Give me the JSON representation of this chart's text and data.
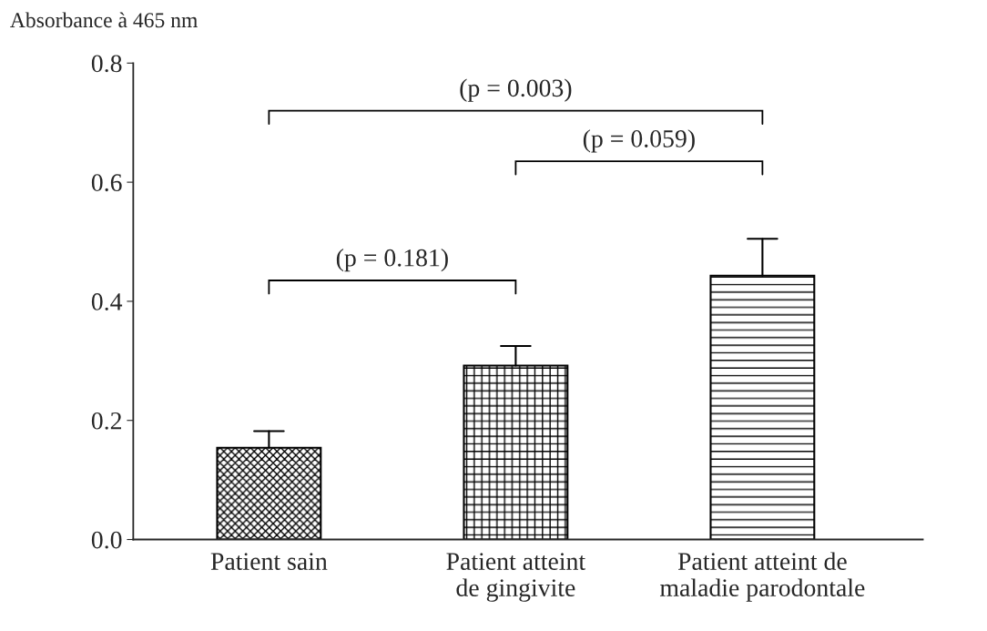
{
  "chart_data": {
    "type": "bar",
    "ylabel": "Absorbance à 465 nm",
    "categories": [
      "Patient sain",
      "Patient atteint\nde gingivite",
      "Patient atteint de\nmaladie parodontale"
    ],
    "values": [
      0.154,
      0.292,
      0.443
    ],
    "errors": [
      [
        0.154,
        0.182
      ],
      [
        0.292,
        0.325
      ],
      [
        0.443,
        0.505
      ]
    ],
    "ylim": [
      0,
      0.8
    ],
    "yticks": [
      {
        "value": 0,
        "label": "0.0"
      },
      {
        "value": 0.2,
        "label": "0.2"
      },
      {
        "value": 0.4,
        "label": "0.4"
      },
      {
        "value": 0.6,
        "label": "0.6"
      },
      {
        "value": 0.8,
        "label": "0.8"
      }
    ],
    "annotations": [
      "(p = 0.003)",
      "(p = 0.059)",
      "(p = 0.181)"
    ],
    "grid": false
  }
}
